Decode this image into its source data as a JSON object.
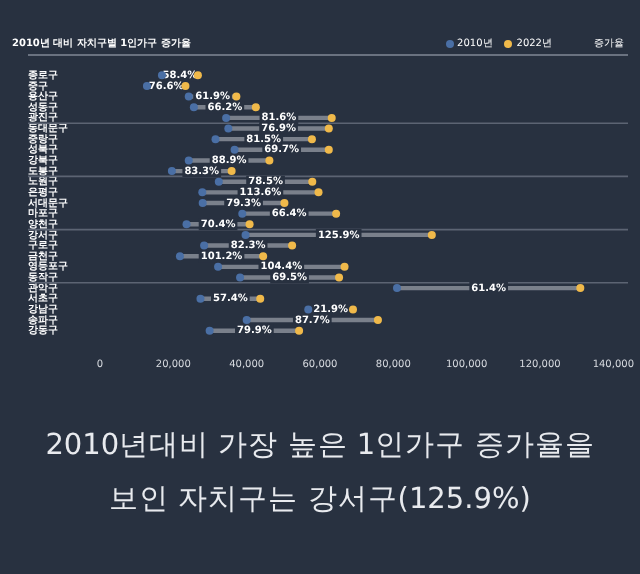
{
  "chart_data": {
    "type": "scatter",
    "orientation": "horizontal",
    "title": "2010년 대비 자치구별 1인가구 증가율",
    "categories": [
      "종로구",
      "중구",
      "용산구",
      "성동구",
      "광진구",
      "동대문구",
      "중랑구",
      "성북구",
      "강북구",
      "도봉구",
      "노원구",
      "은평구",
      "서대문구",
      "마포구",
      "양천구",
      "강서구",
      "구로구",
      "금천구",
      "영등포구",
      "동작구",
      "관악구",
      "서초구",
      "강남구",
      "송파구",
      "강동구"
    ],
    "series": [
      {
        "name": "2010년",
        "color": "#4a6fa5",
        "values": [
          16900,
          12800,
          24200,
          25600,
          34400,
          35000,
          31500,
          36700,
          24200,
          19600,
          32400,
          27900,
          28000,
          38800,
          23600,
          39700,
          28400,
          21800,
          32200,
          38200,
          81000,
          27400,
          56800,
          40000,
          29900
        ]
      },
      {
        "name": "2022년",
        "color": "#f0b94a",
        "values": [
          26700,
          23300,
          37200,
          42500,
          63200,
          62400,
          57800,
          62400,
          46200,
          35900,
          57900,
          59600,
          50300,
          64400,
          40800,
          90500,
          52400,
          44500,
          66700,
          65200,
          131000,
          43700,
          69000,
          75800,
          54300
        ]
      }
    ],
    "xlim": [
      0,
      140000
    ],
    "xticks": [
      0,
      {
        "value": 20000,
        "label": "20,000"
      },
      {
        "value": 40000,
        "label": "40,000"
      },
      {
        "value": 60000,
        "label": "60,000"
      },
      {
        "value": 80000,
        "label": "80,000"
      },
      {
        "value": 100000,
        "label": "100,000"
      },
      {
        "value": 120000,
        "label": "120,000"
      },
      {
        "value": 140000,
        "label": "140,000"
      }
    ],
    "grid": false,
    "legend": "top right",
    "marker": "circle",
    "annotations": [
      "증가율",
      "2010년대비 가장 높은 1인가구 증가율을 보인 자치구는 강서구(125.9%)",
      "58.4%",
      "76.6%",
      "61.9%",
      "66.2%",
      "81.6%",
      "76.9%",
      "81.5%",
      "69.7%",
      "88.9%",
      "83.3%",
      "78.5%",
      "113.6%",
      "79.3%",
      "66.4%",
      "70.4%",
      "125.9%",
      "82.3%",
      "101.2%",
      "104.4%",
      "69.5%",
      "61.4%",
      "57.4%",
      "21.9%",
      "87.7%",
      "79.9%"
    ]
  }
}
